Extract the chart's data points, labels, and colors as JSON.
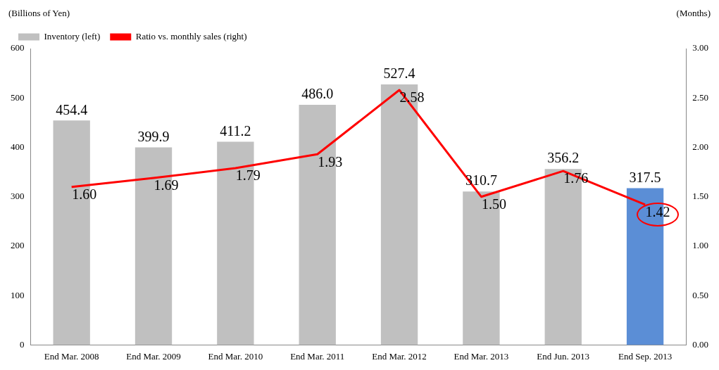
{
  "chart_data": {
    "type": "bar",
    "ylabel": "(Billions of Yen)",
    "y2label": "(Months)",
    "categories": [
      "End Mar. 2008",
      "End Mar. 2009",
      "End Mar. 2010",
      "End Mar. 2011",
      "End Mar. 2012",
      "End Mar. 2013",
      "End Jun. 2013",
      "End Sep. 2013"
    ],
    "series": [
      {
        "name": "Inventory (left)",
        "color": "#c0c0c0",
        "colors": [
          "#c0c0c0",
          "#c0c0c0",
          "#c0c0c0",
          "#c0c0c0",
          "#c0c0c0",
          "#c0c0c0",
          "#c0c0c0",
          "#5b8ed6"
        ],
        "values": [
          454.4,
          399.9,
          411.2,
          486.0,
          527.4,
          310.7,
          356.2,
          317.5
        ],
        "value_labels": [
          "454.4",
          "399.9",
          "411.2",
          "486.0",
          "527.4",
          "310.7",
          "356.2",
          "317.5"
        ]
      },
      {
        "name": "Ratio vs. monthly sales (right)",
        "type": "line",
        "axis": "y2",
        "color": "#ff0000",
        "marker": "none",
        "values": [
          1.6,
          1.69,
          1.79,
          1.93,
          2.58,
          1.5,
          1.76,
          1.42
        ],
        "value_labels": [
          "1.60",
          "1.69",
          "1.79",
          "1.93",
          "2.58",
          "1.50",
          "1.76",
          "1.42"
        ]
      }
    ],
    "ylim": [
      0,
      600
    ],
    "yticks": [
      0,
      100,
      200,
      300,
      400,
      500,
      600
    ],
    "y2lim": [
      0,
      3
    ],
    "y2ticks": [
      {
        "value": 0,
        "label": "0.00"
      },
      {
        "value": 0.5,
        "label": "0.50"
      },
      {
        "value": 1,
        "label": "1.00"
      },
      {
        "value": 1.5,
        "label": "1.50"
      },
      {
        "value": 2,
        "label": "2.00"
      },
      {
        "value": 2.5,
        "label": "2.50"
      },
      {
        "value": 3,
        "label": "3.00"
      }
    ],
    "grid": false,
    "legend": "top left"
  }
}
